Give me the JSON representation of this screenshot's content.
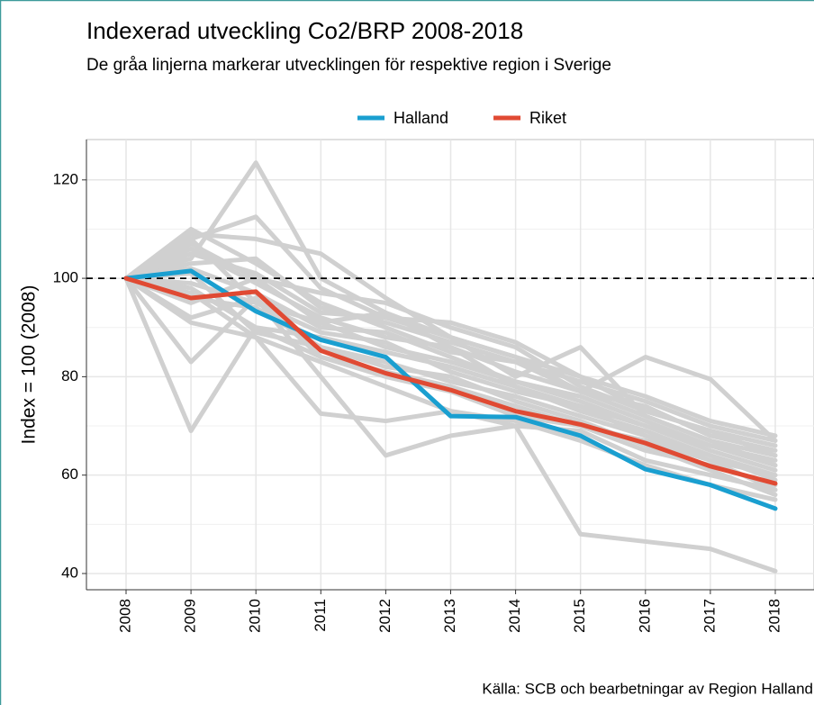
{
  "chart_data": {
    "type": "line",
    "title": "Indexerad utveckling Co2/BRP 2008-2018",
    "subtitle": "De gråa linjerna markerar utvecklingen för respektive region i Sverige",
    "y_label": "Index = 100 (2008)",
    "caption": "Källa: SCB och bearbetningar av Region Halland",
    "categories": [
      "2008",
      "2009",
      "2010",
      "2011",
      "2012",
      "2013",
      "2014",
      "2015",
      "2016",
      "2017",
      "2018"
    ],
    "ylim": [
      36.7,
      128.2
    ],
    "yticks": [
      40,
      60,
      80,
      100,
      120
    ],
    "minor_yticks": [
      50,
      70,
      90,
      110
    ],
    "grid": true,
    "hline": 100,
    "legend": "top",
    "series": [
      {
        "color": "#d0d0d0",
        "values": [
          100,
          69,
          90,
          84,
          80,
          77,
          72,
          70,
          65,
          62,
          58
        ]
      },
      {
        "color": "#d0d0d0",
        "values": [
          100,
          104,
          123.5,
          100,
          93,
          86,
          78,
          74,
          70,
          66,
          62
        ]
      },
      {
        "color": "#d0d0d0",
        "values": [
          100,
          97,
          88,
          72.5,
          71,
          73,
          70,
          48,
          46.5,
          45,
          40.5
        ]
      },
      {
        "color": "#d0d0d0",
        "values": [
          100,
          108,
          112.5,
          98,
          92,
          88,
          80,
          86,
          72,
          67,
          64
        ]
      },
      {
        "color": "#d0d0d0",
        "values": [
          100,
          109,
          108,
          105,
          96,
          88,
          84,
          77,
          84,
          79.5,
          67
        ]
      },
      {
        "color": "#d0d0d0",
        "values": [
          100,
          83,
          96,
          80,
          64,
          68,
          70,
          69,
          63,
          60,
          57
        ]
      },
      {
        "color": "#d0d0d0",
        "values": [
          100,
          92,
          96,
          84,
          81,
          78,
          74,
          70,
          67,
          63,
          60
        ]
      },
      {
        "color": "#d0d0d0",
        "values": [
          100,
          105,
          101,
          93,
          92,
          91,
          87,
          80,
          76,
          71,
          68
        ]
      },
      {
        "color": "#d0d0d0",
        "values": [
          100,
          107,
          100,
          97,
          95,
          90,
          86,
          78,
          73,
          69,
          66
        ]
      },
      {
        "color": "#d0d0d0",
        "values": [
          100,
          95,
          100,
          91,
          86,
          83,
          79,
          76,
          71,
          66,
          63
        ]
      },
      {
        "color": "#d0d0d0",
        "values": [
          100,
          102,
          97,
          90,
          89,
          84,
          79,
          75,
          70,
          65,
          61
        ]
      },
      {
        "color": "#d0d0d0",
        "values": [
          100,
          110,
          103,
          95,
          90,
          85,
          83,
          77,
          74,
          68,
          65
        ]
      },
      {
        "color": "#d0d0d0",
        "values": [
          100,
          98,
          90,
          88,
          85,
          82,
          78,
          73,
          69,
          64,
          59
        ]
      },
      {
        "color": "#d0d0d0",
        "values": [
          100,
          96,
          94,
          86,
          83,
          79,
          76,
          72,
          68,
          63,
          57
        ]
      },
      {
        "color": "#d0d0d0",
        "values": [
          100,
          106,
          99,
          92,
          88,
          86,
          81,
          77,
          72,
          67,
          62
        ]
      },
      {
        "color": "#d0d0d0",
        "values": [
          100,
          101,
          89,
          86,
          82,
          80,
          75,
          71,
          66,
          61,
          56
        ]
      },
      {
        "color": "#d0d0d0",
        "values": [
          100,
          99,
          95,
          89,
          87,
          81,
          77,
          74,
          68,
          64,
          60
        ]
      },
      {
        "color": "#d0d0d0",
        "values": [
          100,
          103,
          104,
          94,
          91,
          87,
          83,
          79,
          75,
          70,
          67
        ]
      },
      {
        "color": "#d0d0d0",
        "values": [
          100,
          91,
          88,
          83,
          78,
          73,
          71,
          67,
          62,
          58,
          55
        ]
      },
      {
        "color": "#d0d0d0",
        "values": [
          100,
          108,
          95,
          91,
          93,
          88,
          84,
          80,
          73,
          69,
          64
        ]
      },
      {
        "name": "Halland",
        "color": "#1a9fd0",
        "values": [
          100,
          101.5,
          93.3,
          87.5,
          84,
          72,
          71.8,
          68,
          61.2,
          58,
          53.2
        ]
      },
      {
        "name": "Riket",
        "color": "#e04a33",
        "values": [
          100,
          96,
          97.3,
          85.3,
          80.7,
          77.3,
          73,
          70.3,
          66.5,
          61.8,
          58.3
        ]
      }
    ]
  }
}
